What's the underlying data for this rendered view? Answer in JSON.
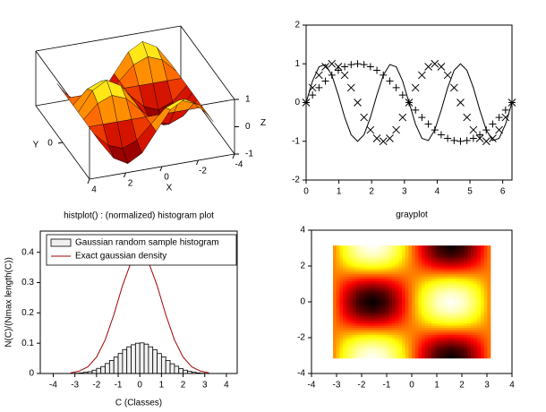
{
  "chart_data": [
    {
      "type": "surface3d",
      "xlabel": "X",
      "ylabel": "Y",
      "zlabel": "Z",
      "x": [
        -3.142,
        -2.356,
        -1.571,
        -0.785,
        0,
        0.785,
        1.571,
        2.356,
        3.142
      ],
      "y": [
        -3.142,
        -2.356,
        -1.571,
        -0.785,
        0,
        0.785,
        1.571,
        2.356,
        3.142
      ],
      "z": [
        [
          0,
          0.707,
          1,
          0.707,
          0,
          -0.707,
          -1,
          -0.707,
          0
        ],
        [
          0,
          0.5,
          0.707,
          0.5,
          0,
          -0.5,
          -0.707,
          -0.5,
          0
        ],
        [
          0,
          0,
          0,
          0,
          0,
          0,
          0,
          0,
          0
        ],
        [
          0,
          -0.5,
          -0.707,
          -0.5,
          0,
          0.5,
          0.707,
          0.5,
          0
        ],
        [
          0,
          -0.707,
          -1,
          -0.707,
          0,
          0.707,
          1,
          0.707,
          0
        ],
        [
          0,
          -0.5,
          -0.707,
          -0.5,
          0,
          0.5,
          0.707,
          0.5,
          0
        ],
        [
          0,
          0,
          0,
          0,
          0,
          0,
          0,
          0,
          0
        ],
        [
          0,
          0.5,
          0.707,
          0.5,
          0,
          -0.5,
          -0.707,
          -0.5,
          0
        ],
        [
          0,
          0.707,
          1,
          0.707,
          0,
          -0.707,
          -1,
          -0.707,
          0
        ]
      ],
      "xlim": [
        -4,
        4
      ],
      "ylim": [
        -4,
        4
      ],
      "zlim": [
        -1,
        1
      ],
      "xticks": [
        -4,
        -2,
        0,
        2,
        4
      ],
      "yticks": [
        0
      ],
      "zticks": [
        -1,
        0,
        1
      ],
      "colormap": "hot"
    },
    {
      "type": "line",
      "x": [
        0,
        0.196,
        0.393,
        0.589,
        0.785,
        0.982,
        1.178,
        1.374,
        1.571,
        1.767,
        1.963,
        2.16,
        2.356,
        2.553,
        2.749,
        2.945,
        3.142,
        3.338,
        3.534,
        3.731,
        3.927,
        4.123,
        4.32,
        4.516,
        4.712,
        4.909,
        5.105,
        5.301,
        5.498,
        5.694,
        5.89,
        6.087,
        6.283
      ],
      "series": [
        {
          "color": "#000000",
          "marker": "plus",
          "values": [
            0,
            0.195,
            0.383,
            0.556,
            0.707,
            0.831,
            0.924,
            0.981,
            1,
            0.981,
            0.924,
            0.831,
            0.707,
            0.556,
            0.383,
            0.195,
            0,
            -0.195,
            -0.383,
            -0.556,
            -0.707,
            -0.831,
            -0.924,
            -0.981,
            -1,
            -0.981,
            -0.924,
            -0.831,
            -0.707,
            -0.556,
            -0.383,
            -0.195,
            0
          ]
        },
        {
          "color": "#000000",
          "marker": "cross",
          "values": [
            0,
            0.383,
            0.707,
            0.924,
            1,
            0.924,
            0.707,
            0.383,
            0,
            -0.383,
            -0.707,
            -0.924,
            -1,
            -0.924,
            -0.707,
            -0.383,
            0,
            0.383,
            0.707,
            0.924,
            1,
            0.924,
            0.707,
            0.383,
            0,
            -0.383,
            -0.707,
            -0.924,
            -1,
            -0.924,
            -0.707,
            -0.383,
            0
          ]
        },
        {
          "color": "#000000",
          "marker": "none",
          "values": [
            0,
            0.556,
            0.924,
            0.981,
            0.707,
            0.195,
            -0.383,
            -0.831,
            -1,
            -0.831,
            -0.383,
            0.195,
            0.707,
            0.981,
            0.924,
            0.556,
            0,
            -0.556,
            -0.924,
            -0.981,
            -0.707,
            -0.195,
            0.383,
            0.831,
            1,
            0.831,
            0.383,
            -0.195,
            -0.707,
            -0.981,
            -0.924,
            -0.556,
            0
          ]
        }
      ],
      "xlim": [
        0,
        6.283
      ],
      "ylim": [
        -2,
        2
      ],
      "xticks": [
        0,
        1,
        2,
        3,
        4,
        5,
        6
      ],
      "yticks": [
        -2,
        -1,
        0,
        1,
        2
      ]
    },
    {
      "type": "histogram",
      "title": "histplot() : (normalized) histogram plot",
      "xlabel": "C (Classes)",
      "ylabel": "N(C)/(Nmax length(C))",
      "series": [
        {
          "name": "Gaussian random sample histogram",
          "kind": "bars",
          "color": "#f0f0f0",
          "bins": [
            -3.2,
            -3,
            -2.8,
            -2.6,
            -2.4,
            -2.2,
            -2,
            -1.8,
            -1.6,
            -1.4,
            -1.2,
            -1,
            -0.8,
            -0.6,
            -0.4,
            -0.2,
            0,
            0.2,
            0.4,
            0.6,
            0.8,
            1,
            1.2,
            1.4,
            1.6,
            1.8,
            2,
            2.2,
            2.4,
            2.6,
            2.8,
            3,
            3.2
          ],
          "values": [
            0,
            0.001,
            0.002,
            0.004,
            0.006,
            0.011,
            0.017,
            0.023,
            0.033,
            0.043,
            0.054,
            0.066,
            0.079,
            0.088,
            0.095,
            0.1,
            0.101,
            0.097,
            0.088,
            0.078,
            0.066,
            0.055,
            0.043,
            0.032,
            0.024,
            0.016,
            0.011,
            0.007,
            0.004,
            0.002,
            0.001,
            0
          ]
        },
        {
          "name": "Exact gaussian density",
          "kind": "line",
          "color": "#a00000",
          "x": [
            -3.2,
            -2.8,
            -2.4,
            -2,
            -1.6,
            -1.2,
            -0.8,
            -0.4,
            0,
            0.4,
            0.8,
            1.2,
            1.6,
            2,
            2.4,
            2.8,
            3.2
          ],
          "values": [
            0.002,
            0.008,
            0.022,
            0.054,
            0.111,
            0.194,
            0.29,
            0.368,
            0.399,
            0.368,
            0.29,
            0.194,
            0.111,
            0.054,
            0.022,
            0.008,
            0.002
          ]
        }
      ],
      "legend": "upper left",
      "xlim": [
        -4.6,
        4.5
      ],
      "ylim": [
        0,
        0.47
      ],
      "xticks": [
        -4,
        -3,
        -2,
        -1,
        0,
        1,
        2,
        3,
        4
      ],
      "yticks": [
        0,
        0.1,
        0.2,
        0.3,
        0.4
      ]
    },
    {
      "type": "grayplot",
      "title": "grayplot",
      "colormap": "hot",
      "x": [
        -3.142,
        -2.618,
        -2.094,
        -1.571,
        -1.047,
        -0.524,
        0,
        0.524,
        1.047,
        1.571,
        2.094,
        2.618,
        3.142
      ],
      "y": [
        -3.142,
        -2.618,
        -2.094,
        -1.571,
        -1.047,
        -0.524,
        0,
        0.524,
        1.047,
        1.571,
        2.094,
        2.618,
        3.142
      ],
      "z": [
        [
          0,
          0.5,
          0.866,
          1,
          0.866,
          0.5,
          0,
          -0.5,
          -0.866,
          -1,
          -0.866,
          -0.5,
          0
        ],
        [
          0,
          0.433,
          0.75,
          0.866,
          0.75,
          0.433,
          0,
          -0.433,
          -0.75,
          -0.866,
          -0.75,
          -0.433,
          0
        ],
        [
          0,
          0.25,
          0.433,
          0.5,
          0.433,
          0.25,
          0,
          -0.25,
          -0.433,
          -0.5,
          -0.433,
          -0.25,
          0
        ],
        [
          0,
          0,
          0,
          0,
          0,
          0,
          0,
          0,
          0,
          0,
          0,
          0,
          0
        ],
        [
          0,
          -0.25,
          -0.433,
          -0.5,
          -0.433,
          -0.25,
          0,
          0.25,
          0.433,
          0.5,
          0.433,
          0.25,
          0
        ],
        [
          0,
          -0.433,
          -0.75,
          -0.866,
          -0.75,
          -0.433,
          0,
          0.433,
          0.75,
          0.866,
          0.75,
          0.433,
          0
        ],
        [
          0,
          -0.5,
          -0.866,
          -1,
          -0.866,
          -0.5,
          0,
          0.5,
          0.866,
          1,
          0.866,
          0.5,
          0
        ],
        [
          0,
          -0.433,
          -0.75,
          -0.866,
          -0.75,
          -0.433,
          0,
          0.433,
          0.75,
          0.866,
          0.75,
          0.433,
          0
        ],
        [
          0,
          -0.25,
          -0.433,
          -0.5,
          -0.433,
          -0.25,
          0,
          0.25,
          0.433,
          0.5,
          0.433,
          0.25,
          0
        ],
        [
          0,
          0,
          0,
          0,
          0,
          0,
          0,
          0,
          0,
          0,
          0,
          0,
          0
        ],
        [
          0,
          0.25,
          0.433,
          0.5,
          0.433,
          0.25,
          0,
          -0.25,
          -0.433,
          -0.5,
          -0.433,
          -0.25,
          0
        ],
        [
          0,
          0.433,
          0.75,
          0.866,
          0.75,
          0.433,
          0,
          -0.433,
          -0.75,
          -0.866,
          -0.75,
          -0.433,
          0
        ],
        [
          0,
          0.5,
          0.866,
          1,
          0.866,
          0.5,
          0,
          -0.5,
          -0.866,
          -1,
          -0.866,
          -0.5,
          0
        ]
      ],
      "xlim": [
        -4,
        4
      ],
      "ylim": [
        -4,
        4
      ],
      "xticks": [
        -4,
        -3,
        -2,
        -1,
        0,
        1,
        2,
        3,
        4
      ],
      "yticks": [
        -4,
        -2,
        0,
        2,
        4
      ]
    }
  ]
}
